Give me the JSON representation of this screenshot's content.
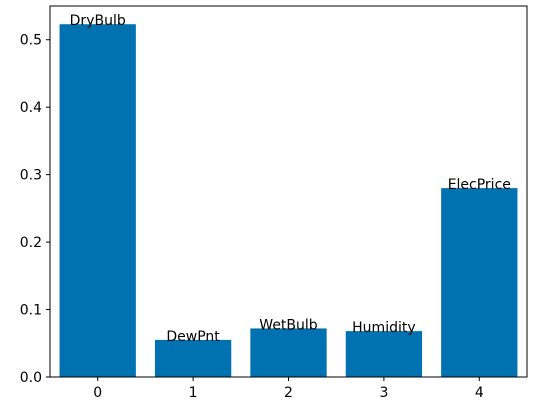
{
  "chart_data": {
    "type": "bar",
    "title": "",
    "xlabel": "",
    "ylabel": "",
    "categories": [
      "0",
      "1",
      "2",
      "3",
      "4"
    ],
    "values": [
      0.523,
      0.055,
      0.072,
      0.068,
      0.28
    ],
    "bar_labels": [
      "DryBulb",
      "DewPnt",
      "WetBulb",
      "Humidity",
      "ElecPrice"
    ],
    "ylim": [
      0,
      0.55
    ],
    "yticks": [
      0.0,
      0.1,
      0.2,
      0.3,
      0.4,
      0.5
    ],
    "ytick_labels": [
      "0.0",
      "0.1",
      "0.2",
      "0.3",
      "0.4",
      "0.5"
    ],
    "grid": false,
    "legend": "none",
    "bar_color": "#0072b2"
  }
}
